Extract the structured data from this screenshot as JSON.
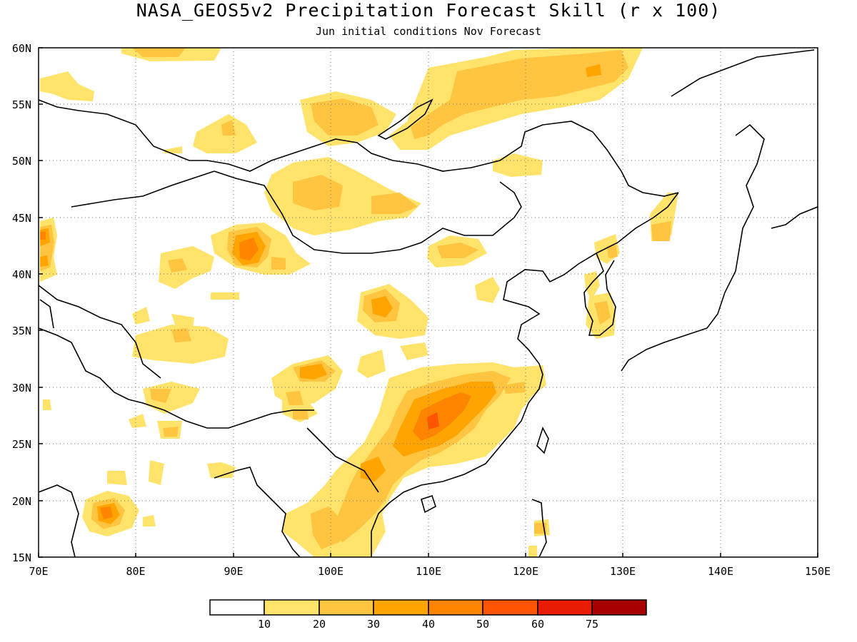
{
  "header": {
    "title": "NASA_GEOS5v2 Precipitation Forecast Skill (r x 100)",
    "subtitle": "Jun initial conditions  Nov Forecast"
  },
  "map": {
    "lon_range": [
      70,
      150
    ],
    "lat_range": [
      15,
      60
    ],
    "lon_ticks": [
      "70E",
      "80E",
      "90E",
      "100E",
      "110E",
      "120E",
      "130E",
      "140E",
      "150E"
    ],
    "lat_ticks": [
      "15N",
      "20N",
      "25N",
      "30N",
      "35N",
      "40N",
      "45N",
      "50N",
      "55N",
      "60N"
    ],
    "grid": true
  },
  "colorbar": {
    "labels": [
      "10",
      "20",
      "30",
      "40",
      "50",
      "60",
      "75"
    ],
    "colors": [
      "#ffffff",
      "#ffe36b",
      "#ffc440",
      "#ffa400",
      "#ff8400",
      "#ff5400",
      "#e81c00",
      "#a80000"
    ]
  }
}
